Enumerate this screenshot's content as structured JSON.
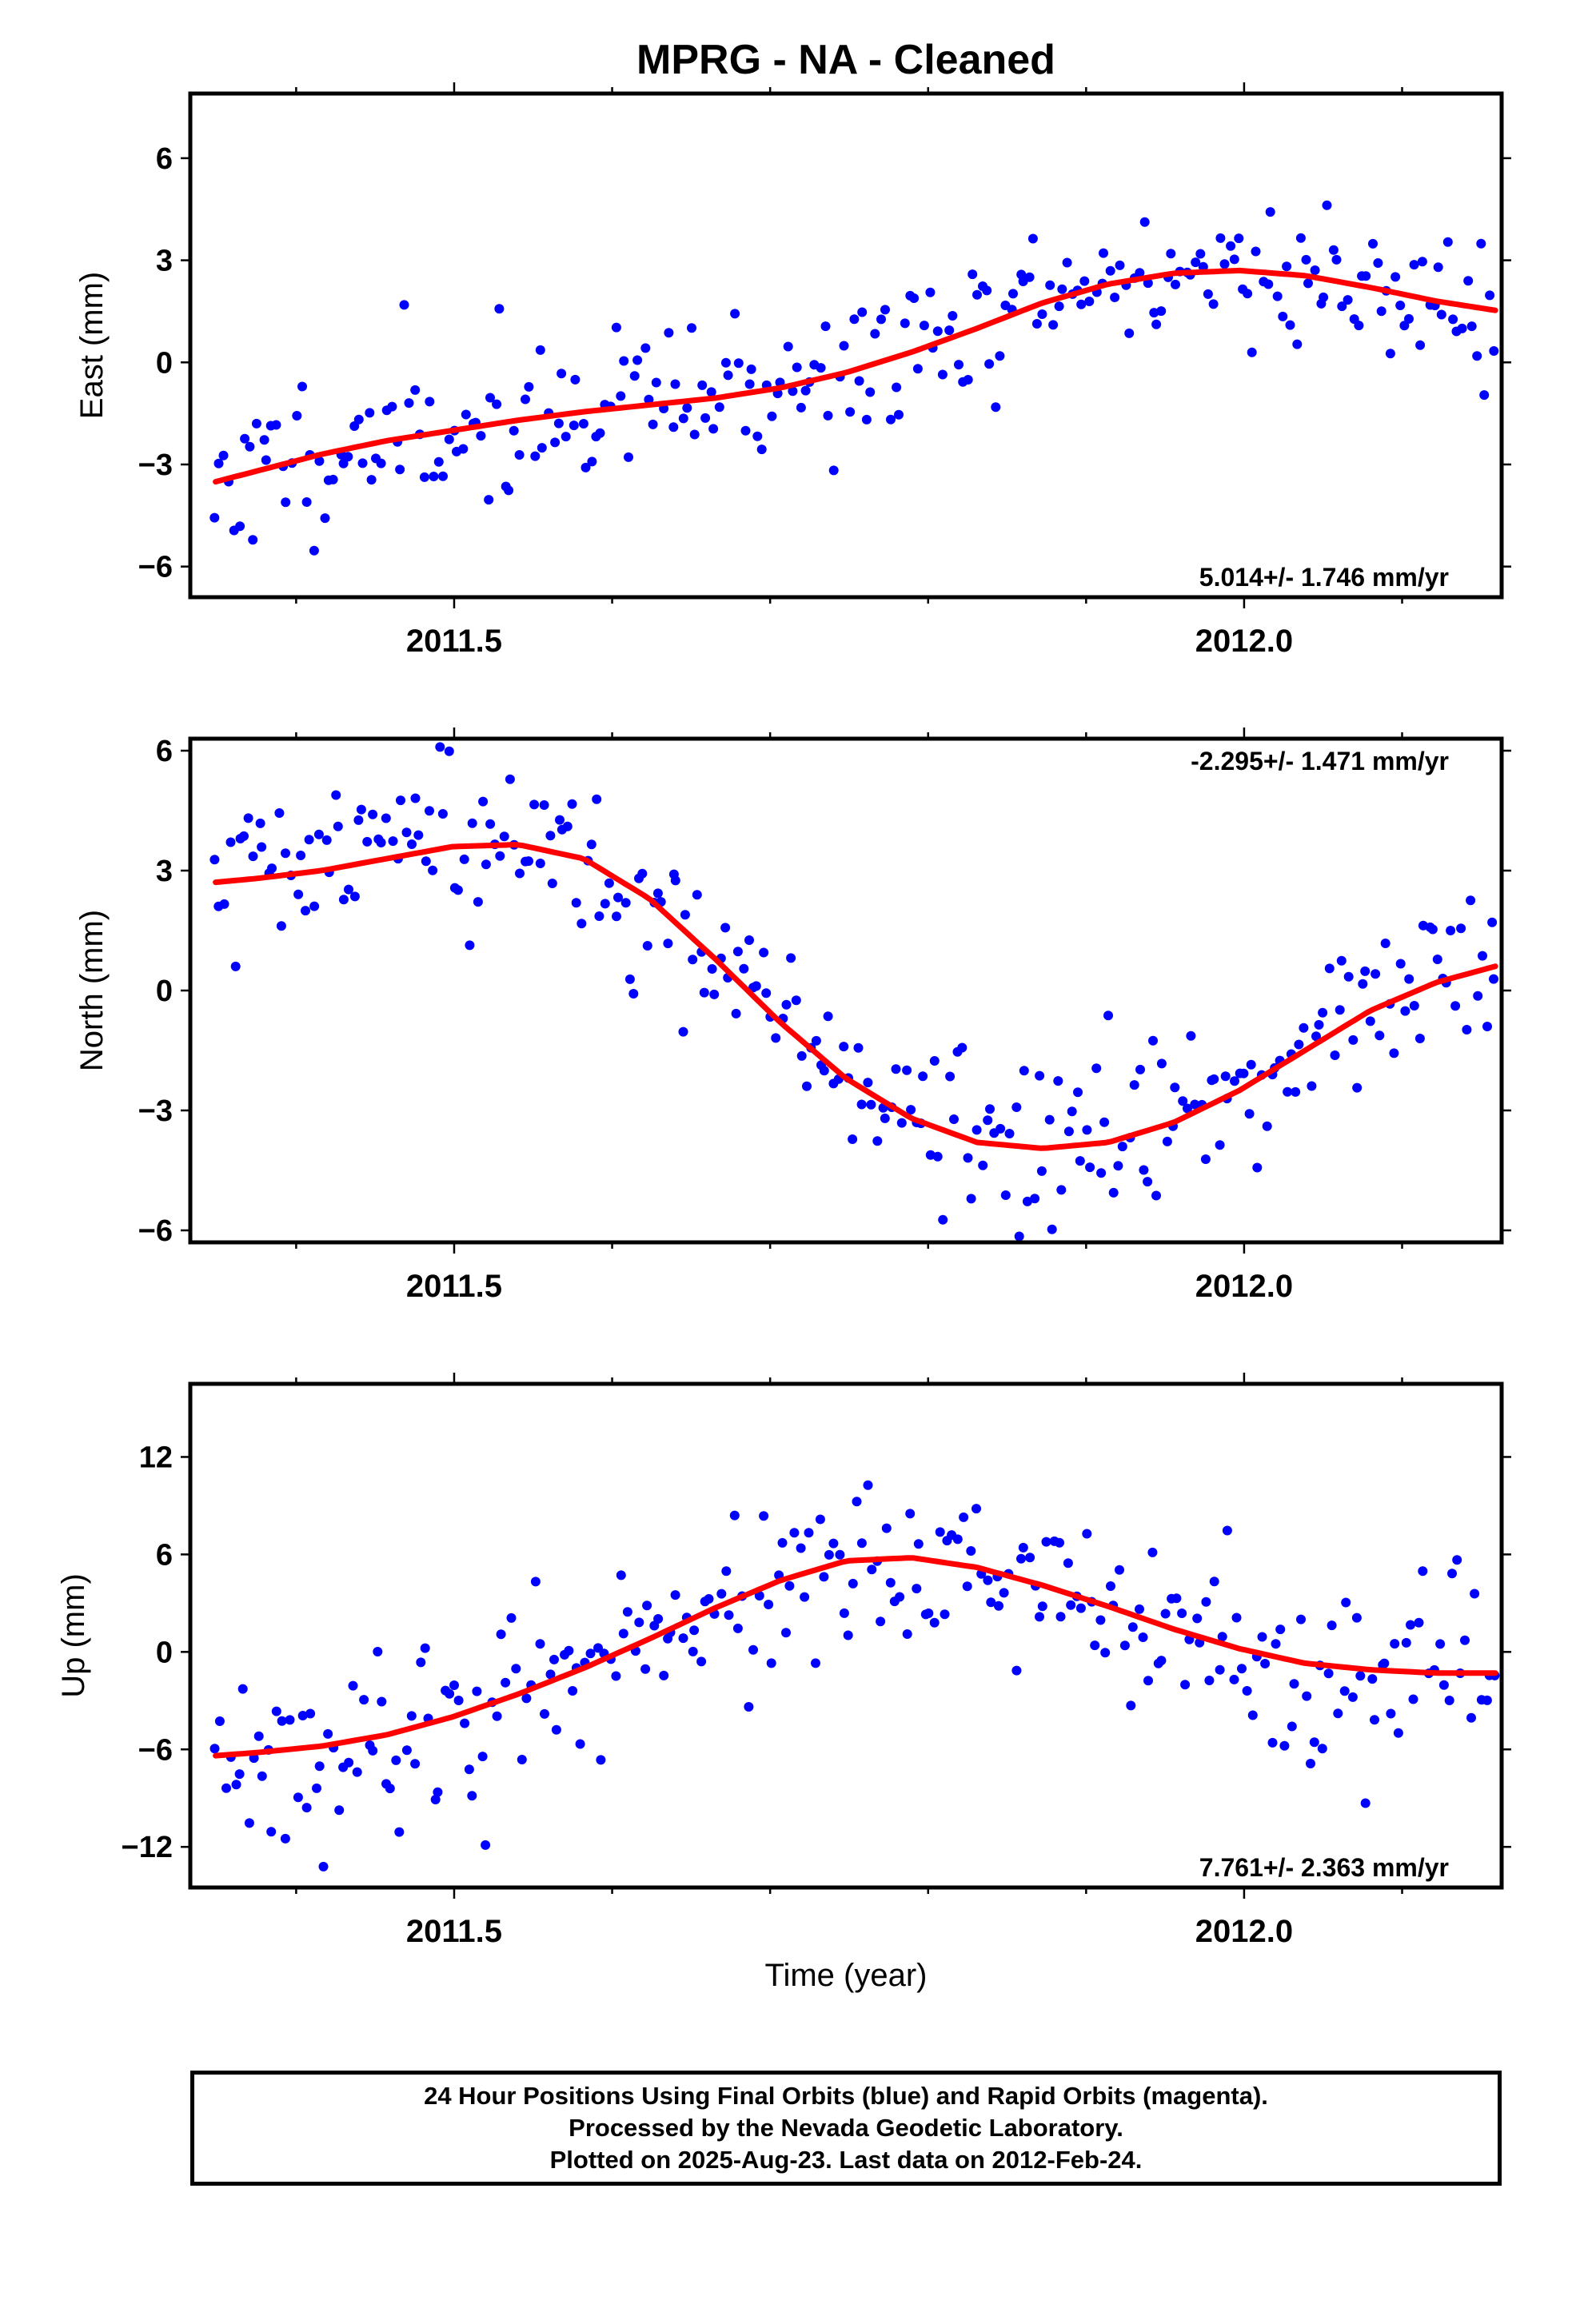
{
  "title": "MPRG  - NA - Cleaned",
  "xlabel": "Time (year)",
  "footer": {
    "line1": "24 Hour Positions Using Final Orbits (blue) and Rapid Orbits (magenta).",
    "line2": "Processed by the Nevada Geodetic Laboratory.",
    "line3": "Plotted on 2025-Aug-23. Last data on 2012-Feb-24."
  },
  "colors": {
    "final_orbits": "#0000ff",
    "model": "#ff0000",
    "rapid_orbits": "#ff00ff"
  },
  "chart_data": [
    {
      "type": "scatter",
      "ylabel": "East (mm)",
      "rate_label": "5.014+/- 1.746 mm/yr",
      "xlim": [
        2011.333,
        2012.163
      ],
      "ylim": [
        -6.9,
        7.9
      ],
      "xticks": [
        2011.5,
        2012.0
      ],
      "xtick_labels": [
        "2011.5",
        "2012.0"
      ],
      "yticks": [
        -6,
        -3,
        0,
        3,
        6
      ],
      "ytick_labels": [
        "−6",
        "−3",
        "0",
        "3",
        "6"
      ],
      "grid": false,
      "series": [
        {
          "model": "trend",
          "values": [
            -3.7,
            -3.2,
            -2.7,
            -2.3,
            -2.0,
            -1.7,
            -1.45,
            -1.25,
            -1.05,
            -0.75,
            -0.3,
            0.3,
            1.0,
            1.75,
            2.3,
            2.62,
            2.7,
            2.55,
            2.2,
            1.8,
            1.5
          ]
        }
      ]
    },
    {
      "type": "scatter",
      "ylabel": "North (mm)",
      "rate_label": "-2.295+/- 1.471 mm/yr",
      "xlim": [
        2011.333,
        2012.163
      ],
      "ylim": [
        -6.3,
        6.3
      ],
      "xticks": [
        2011.5,
        2012.0
      ],
      "xtick_labels": [
        "2011.5",
        "2012.0"
      ],
      "yticks": [
        -6,
        -3,
        0,
        3,
        6
      ],
      "ytick_labels": [
        "−6",
        "−3",
        "0",
        "3",
        "6"
      ],
      "grid": false,
      "series": [
        {
          "model": "trend",
          "values": [
            2.65,
            2.8,
            3.0,
            3.3,
            3.6,
            3.65,
            3.3,
            2.3,
            0.8,
            -0.8,
            -2.2,
            -3.2,
            -3.8,
            -3.95,
            -3.8,
            -3.3,
            -2.5,
            -1.5,
            -0.5,
            0.2,
            0.65
          ]
        }
      ]
    },
    {
      "type": "scatter",
      "ylabel": "Up (mm)",
      "rate_label": "7.761+/- 2.363 mm/yr",
      "xlim": [
        2011.333,
        2012.163
      ],
      "ylim": [
        -14.5,
        16.5
      ],
      "xticks": [
        2011.5,
        2012.0
      ],
      "xtick_labels": [
        "2011.5",
        "2012.0"
      ],
      "yticks": [
        -12,
        -6,
        0,
        6,
        12
      ],
      "ytick_labels": [
        "−12",
        "−6",
        "0",
        "6",
        "12"
      ],
      "grid": false,
      "series": [
        {
          "model": "trend",
          "values": [
            -6.5,
            -6.2,
            -5.8,
            -5.1,
            -4.0,
            -2.6,
            -1.0,
            0.8,
            2.7,
            4.4,
            5.6,
            5.8,
            5.2,
            4.1,
            2.8,
            1.4,
            0.2,
            -0.7,
            -1.1,
            -1.3,
            -1.3
          ]
        }
      ]
    }
  ]
}
